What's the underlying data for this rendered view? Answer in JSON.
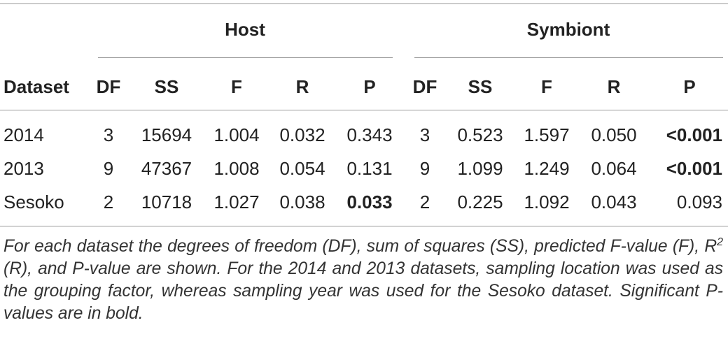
{
  "table": {
    "groups": [
      "Host",
      "Symbiont"
    ],
    "columns": [
      "Dataset",
      "DF",
      "SS",
      "F",
      "R",
      "P",
      "DF",
      "SS",
      "F",
      "R",
      "P"
    ],
    "rows": [
      [
        "2014",
        "3",
        "15694",
        "1.004",
        "0.032",
        "0.343",
        "3",
        "0.523",
        "1.597",
        "0.050",
        {
          "text": "<0.001",
          "bold": true
        }
      ],
      [
        "2013",
        "9",
        "47367",
        "1.008",
        "0.054",
        "0.131",
        "9",
        "1.099",
        "1.249",
        "0.064",
        {
          "text": "<0.001",
          "bold": true
        }
      ],
      [
        "Sesoko",
        "2",
        "10718",
        "1.027",
        "0.038",
        {
          "text": "0.033",
          "bold": true
        },
        "2",
        "0.225",
        "1.092",
        "0.043",
        "0.093"
      ]
    ]
  },
  "caption": {
    "before": "For each dataset the degrees of freedom (DF), sum of squares (SS), predicted F-value (F), R",
    "sup": "2",
    "after": " (R), and P-value are shown. For the 2014 and 2013 datasets, sampling location was used as the grouping factor, whereas sampling year was used for the Sesoko dataset. Significant P-values are in bold."
  }
}
